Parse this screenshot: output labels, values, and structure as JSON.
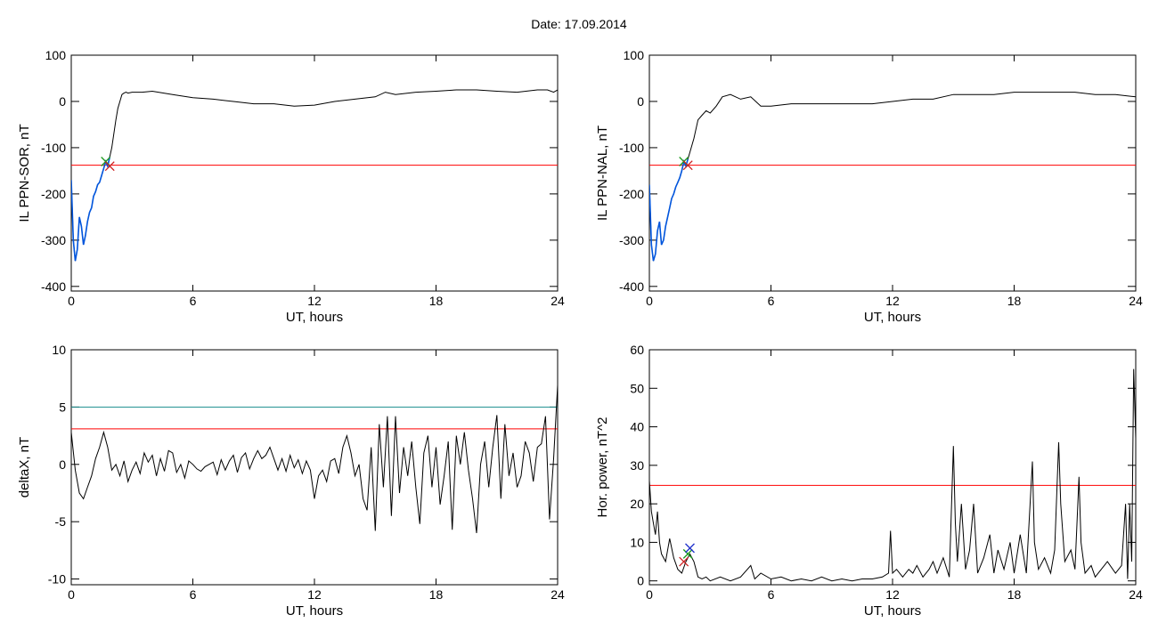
{
  "header": {
    "date_text": "Date:  17.09.2014"
  },
  "chart_data": [
    {
      "type": "line",
      "ylabel": "IL PPN-SOR, nT",
      "xlabel": "UT, hours",
      "xlim": [
        0,
        24
      ],
      "ylim": [
        -410,
        100
      ],
      "xticks": [
        0,
        6,
        12,
        18,
        24
      ],
      "yticks": [
        100,
        0,
        -100,
        -200,
        -300,
        -400
      ],
      "threshold_lines": [
        {
          "y": -138,
          "color": "#ff0000"
        }
      ],
      "highlight_segment": {
        "x_start": 0.0,
        "x_end": 1.9,
        "color": "#0055dd"
      },
      "markers": [
        {
          "x": 1.7,
          "y": -130,
          "symbol": "x",
          "color": "#1d9a1d"
        },
        {
          "x": 1.9,
          "y": -140,
          "symbol": "x",
          "color": "#cc2222"
        }
      ],
      "series": [
        {
          "color": "#000000",
          "x": [
            0,
            0.1,
            0.2,
            0.3,
            0.4,
            0.5,
            0.6,
            0.7,
            0.8,
            0.9,
            1.0,
            1.1,
            1.2,
            1.3,
            1.4,
            1.5,
            1.6,
            1.7,
            1.8,
            1.9,
            2.0,
            2.1,
            2.2,
            2.3,
            2.4,
            2.5,
            2.6,
            2.7,
            2.8,
            3.0,
            3.5,
            4,
            5,
            6,
            7,
            8,
            9,
            10,
            11,
            12,
            13,
            14,
            15,
            15.5,
            16,
            17,
            18,
            19,
            20,
            21,
            22,
            23,
            23.5,
            23.8,
            24
          ],
          "y": [
            -170,
            -300,
            -345,
            -320,
            -250,
            -270,
            -310,
            -290,
            -260,
            -240,
            -230,
            -205,
            -195,
            -180,
            -175,
            -160,
            -145,
            -130,
            -140,
            -120,
            -100,
            -70,
            -40,
            -15,
            0,
            15,
            18,
            20,
            18,
            20,
            20,
            22,
            15,
            8,
            5,
            0,
            -5,
            -5,
            -10,
            -8,
            0,
            5,
            10,
            20,
            15,
            20,
            22,
            25,
            25,
            22,
            20,
            25,
            25,
            20,
            25
          ]
        }
      ]
    },
    {
      "type": "line",
      "ylabel": "IL PPN-NAL, nT",
      "xlabel": "UT, hours",
      "xlim": [
        0,
        24
      ],
      "ylim": [
        -410,
        100
      ],
      "xticks": [
        0,
        6,
        12,
        18,
        24
      ],
      "yticks": [
        100,
        0,
        -100,
        -200,
        -300,
        -400
      ],
      "threshold_lines": [
        {
          "y": -138,
          "color": "#ff0000"
        }
      ],
      "highlight_segment": {
        "x_start": 0.0,
        "x_end": 1.9,
        "color": "#0055dd"
      },
      "markers": [
        {
          "x": 1.7,
          "y": -130,
          "symbol": "x",
          "color": "#1d9a1d"
        },
        {
          "x": 1.9,
          "y": -138,
          "symbol": "x",
          "color": "#cc2222"
        }
      ],
      "series": [
        {
          "color": "#000000",
          "x": [
            0,
            0.1,
            0.2,
            0.3,
            0.4,
            0.5,
            0.6,
            0.7,
            0.8,
            0.9,
            1.0,
            1.1,
            1.2,
            1.3,
            1.4,
            1.5,
            1.6,
            1.7,
            1.8,
            1.9,
            2.0,
            2.2,
            2.4,
            2.6,
            2.8,
            3.0,
            3.3,
            3.6,
            4.0,
            4.5,
            5.0,
            5.5,
            6,
            7,
            8,
            9,
            10,
            11,
            12,
            13,
            14,
            15,
            16,
            17,
            18,
            19,
            20,
            21,
            22,
            23,
            24
          ],
          "y": [
            -180,
            -310,
            -345,
            -330,
            -280,
            -260,
            -310,
            -300,
            -270,
            -250,
            -230,
            -210,
            -200,
            -185,
            -175,
            -165,
            -150,
            -130,
            -140,
            -125,
            -110,
            -80,
            -40,
            -30,
            -20,
            -25,
            -10,
            10,
            15,
            5,
            10,
            -10,
            -10,
            -5,
            -5,
            -5,
            -5,
            -5,
            0,
            5,
            5,
            15,
            15,
            15,
            20,
            20,
            20,
            20,
            15,
            15,
            10
          ]
        }
      ]
    },
    {
      "type": "line",
      "ylabel": "deltaX, nT",
      "xlabel": "UT, hours",
      "xlim": [
        0,
        24
      ],
      "ylim": [
        -10.5,
        10
      ],
      "xticks": [
        0,
        6,
        12,
        18,
        24
      ],
      "yticks": [
        10,
        5,
        0,
        -5,
        -10
      ],
      "threshold_lines": [
        {
          "y": 5,
          "color": "#1b8f8f"
        },
        {
          "y": 3.1,
          "color": "#ff0000"
        }
      ],
      "series": [
        {
          "color": "#000000",
          "x": [
            0,
            0.2,
            0.4,
            0.6,
            0.8,
            1.0,
            1.2,
            1.4,
            1.6,
            1.8,
            2.0,
            2.2,
            2.4,
            2.6,
            2.8,
            3.0,
            3.2,
            3.4,
            3.6,
            3.8,
            4.0,
            4.2,
            4.4,
            4.6,
            4.8,
            5.0,
            5.2,
            5.4,
            5.6,
            5.8,
            6.0,
            6.2,
            6.4,
            6.6,
            6.8,
            7.0,
            7.2,
            7.4,
            7.6,
            7.8,
            8.0,
            8.2,
            8.4,
            8.6,
            8.8,
            9.0,
            9.2,
            9.4,
            9.6,
            9.8,
            10.0,
            10.2,
            10.4,
            10.6,
            10.8,
            11.0,
            11.2,
            11.4,
            11.6,
            11.8,
            12.0,
            12.2,
            12.4,
            12.6,
            12.8,
            13.0,
            13.2,
            13.4,
            13.6,
            13.8,
            14.0,
            14.2,
            14.4,
            14.6,
            14.8,
            15.0,
            15.2,
            15.4,
            15.6,
            15.8,
            16.0,
            16.2,
            16.4,
            16.6,
            16.8,
            17.0,
            17.2,
            17.4,
            17.6,
            17.8,
            18.0,
            18.2,
            18.4,
            18.6,
            18.8,
            19.0,
            19.2,
            19.4,
            19.6,
            19.8,
            20.0,
            20.2,
            20.4,
            20.6,
            20.8,
            21.0,
            21.2,
            21.4,
            21.6,
            21.8,
            22.0,
            22.2,
            22.4,
            22.6,
            22.8,
            23.0,
            23.2,
            23.4,
            23.6,
            23.8,
            24.0
          ],
          "y": [
            2.8,
            -0.5,
            -2.5,
            -3.0,
            -2.0,
            -1.0,
            0.5,
            1.5,
            2.8,
            1.5,
            -0.5,
            0.0,
            -1.0,
            0.3,
            -1.5,
            -0.5,
            0.2,
            -0.8,
            1.0,
            0.2,
            0.8,
            -1.0,
            0.5,
            -0.6,
            1.2,
            1.0,
            -0.7,
            0.0,
            -1.2,
            0.3,
            0.0,
            -0.4,
            -0.6,
            -0.2,
            0.0,
            0.2,
            -0.9,
            0.4,
            -0.5,
            0.3,
            0.8,
            -0.7,
            0.6,
            1.0,
            -0.4,
            0.5,
            1.2,
            0.5,
            0.8,
            1.5,
            0.5,
            -0.5,
            0.5,
            -0.6,
            0.8,
            -0.3,
            0.4,
            -0.8,
            0.3,
            -0.5,
            -3.0,
            -1.0,
            -0.5,
            -1.5,
            0.3,
            0.5,
            -0.8,
            1.5,
            2.5,
            1.0,
            -1.0,
            0.0,
            -3.0,
            -4.0,
            1.5,
            -5.8,
            3.5,
            -2.0,
            4.2,
            -4.5,
            4.2,
            -2.5,
            1.5,
            -1.0,
            2.0,
            -2.0,
            -5.2,
            1.0,
            2.5,
            -2.0,
            1.5,
            -3.5,
            -1.0,
            2.0,
            -5.7,
            2.5,
            0.0,
            2.8,
            -0.5,
            -3.0,
            -6.0,
            0.0,
            2.0,
            -2.0,
            1.5,
            4.3,
            -3.0,
            3.5,
            -1.0,
            1.0,
            -2.0,
            -1.0,
            2.0,
            1.0,
            -1.5,
            1.5,
            1.8,
            4.2,
            -4.8,
            0.5,
            6.9
          ]
        }
      ]
    },
    {
      "type": "line",
      "ylabel": "Hor. power, nT^2",
      "xlabel": "UT, hours",
      "xlim": [
        0,
        24
      ],
      "ylim": [
        -1,
        60
      ],
      "xticks": [
        0,
        6,
        12,
        18,
        24
      ],
      "yticks": [
        60,
        50,
        40,
        30,
        20,
        10,
        0
      ],
      "threshold_lines": [
        {
          "y": 24.8,
          "color": "#ff0000"
        }
      ],
      "markers": [
        {
          "x": 1.7,
          "y": 5,
          "symbol": "x",
          "color": "#cc2222"
        },
        {
          "x": 1.9,
          "y": 7,
          "symbol": "x",
          "color": "#1d9a1d"
        },
        {
          "x": 2.0,
          "y": 8.5,
          "symbol": "x",
          "color": "#2233cc"
        }
      ],
      "series": [
        {
          "color": "#000000",
          "x": [
            0,
            0.1,
            0.2,
            0.3,
            0.4,
            0.5,
            0.6,
            0.8,
            1.0,
            1.2,
            1.4,
            1.6,
            1.8,
            2.0,
            2.2,
            2.4,
            2.6,
            2.8,
            3.0,
            3.5,
            4.0,
            4.5,
            5.0,
            5.2,
            5.5,
            6.0,
            6.5,
            7.0,
            7.5,
            8.0,
            8.5,
            9.0,
            9.5,
            10.0,
            10.5,
            11.0,
            11.5,
            11.8,
            11.9,
            12.0,
            12.2,
            12.5,
            12.8,
            13.0,
            13.2,
            13.5,
            13.8,
            14.0,
            14.2,
            14.5,
            14.8,
            15.0,
            15.1,
            15.2,
            15.4,
            15.6,
            15.8,
            16.0,
            16.2,
            16.5,
            16.8,
            17.0,
            17.2,
            17.5,
            17.8,
            18.0,
            18.3,
            18.6,
            18.9,
            19.0,
            19.2,
            19.5,
            19.8,
            20.0,
            20.2,
            20.3,
            20.5,
            20.8,
            21.0,
            21.2,
            21.3,
            21.5,
            21.8,
            22.0,
            22.3,
            22.6,
            23.0,
            23.3,
            23.5,
            23.6,
            23.7,
            23.8,
            23.9,
            24.0
          ],
          "y": [
            26,
            18,
            15,
            12,
            18,
            10,
            7,
            5,
            11,
            6,
            3,
            2,
            5,
            7,
            5,
            1,
            0.5,
            1,
            0,
            1,
            0,
            1,
            4,
            0.5,
            2,
            0.5,
            1,
            0,
            0.5,
            0,
            1,
            0,
            0.5,
            0,
            0.5,
            0.5,
            1,
            2,
            13,
            2,
            3,
            1,
            3,
            2,
            4,
            1,
            3,
            5,
            2,
            6,
            1,
            35,
            15,
            5,
            20,
            3,
            8,
            20,
            2,
            6,
            12,
            2,
            8,
            3,
            10,
            2,
            12,
            2,
            31,
            10,
            3,
            6,
            2,
            8,
            36,
            20,
            5,
            8,
            3,
            27,
            10,
            2,
            4,
            1,
            3,
            5,
            2,
            4,
            20,
            0.5,
            20,
            5,
            55,
            37
          ]
        }
      ]
    }
  ]
}
